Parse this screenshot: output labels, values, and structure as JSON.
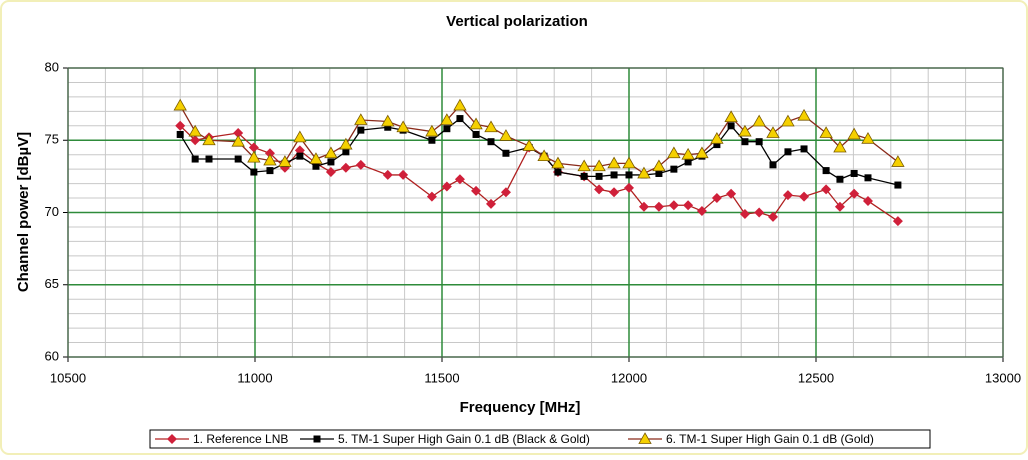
{
  "chart_data": {
    "type": "line",
    "title": "Vertical polarization",
    "x_label": "Frequency [MHz]",
    "y_label": "Channel power [dBµV]",
    "xlim": [
      10500,
      13000
    ],
    "xticks": [
      10500,
      11000,
      11500,
      12000,
      12500,
      13000
    ],
    "ylim": [
      60,
      80
    ],
    "yticks": [
      60,
      65,
      70,
      75,
      80
    ],
    "grid": true,
    "minor_grid": true,
    "legend": "bottom",
    "x": [
      10800,
      10840,
      10877,
      10955,
      10997,
      11040,
      11080,
      11120,
      11163,
      11203,
      11243,
      11283,
      11355,
      11396,
      11473,
      11513,
      11548,
      11591,
      11631,
      11671,
      11733,
      11773,
      11810,
      11880,
      11920,
      11960,
      12000,
      12040,
      12080,
      12120,
      12158,
      12195,
      12235,
      12273,
      12310,
      12348,
      12385,
      12425,
      12468,
      12527,
      12564,
      12602,
      12639,
      12719
    ],
    "series": [
      {
        "name": "1. Reference LNB",
        "color": "#d0203a",
        "line_color": "#b02020",
        "marker": "diamond",
        "values": [
          76.0,
          75.0,
          75.2,
          75.5,
          74.5,
          74.1,
          73.1,
          74.3,
          73.4,
          72.8,
          73.1,
          73.3,
          72.6,
          72.6,
          71.1,
          71.8,
          72.3,
          71.5,
          70.6,
          71.4,
          74.5,
          73.9,
          72.8,
          72.5,
          71.6,
          71.4,
          71.7,
          70.4,
          70.4,
          70.5,
          70.5,
          70.1,
          71.0,
          71.3,
          69.9,
          70.0,
          69.7,
          71.2,
          71.1,
          71.6,
          70.4,
          71.3,
          70.8,
          69.4
        ]
      },
      {
        "name": "5. TM-1 Super High Gain 0.1 dB (Black & Gold)",
        "color": "#000000",
        "line_color": "#000000",
        "marker": "square",
        "values": [
          75.4,
          73.7,
          73.7,
          73.7,
          72.8,
          72.9,
          73.4,
          73.9,
          73.2,
          73.5,
          74.2,
          75.7,
          75.9,
          75.7,
          75.0,
          75.8,
          76.5,
          75.4,
          74.9,
          74.1,
          74.5,
          73.9,
          72.8,
          72.5,
          72.5,
          72.6,
          72.6,
          72.6,
          72.7,
          73.0,
          73.5,
          73.9,
          74.7,
          76.0,
          74.9,
          74.9,
          73.3,
          74.2,
          74.4,
          72.9,
          72.3,
          72.7,
          72.4,
          71.9
        ]
      },
      {
        "name": "6. TM-1 Super High Gain 0.1 dB (Gold)",
        "color": "#f5d000",
        "line_color": "#8a2a1a",
        "marker": "triangle",
        "values": [
          77.4,
          75.6,
          75.0,
          74.9,
          73.8,
          73.6,
          73.5,
          75.2,
          73.7,
          74.1,
          74.7,
          76.4,
          76.3,
          75.9,
          75.6,
          76.4,
          77.4,
          76.1,
          75.9,
          75.3,
          74.6,
          73.9,
          73.4,
          73.2,
          73.2,
          73.4,
          73.4,
          72.7,
          73.2,
          74.1,
          74.0,
          74.1,
          75.1,
          76.6,
          75.6,
          76.3,
          75.5,
          76.3,
          76.7,
          75.5,
          74.5,
          75.4,
          75.1,
          73.5
        ]
      }
    ]
  }
}
